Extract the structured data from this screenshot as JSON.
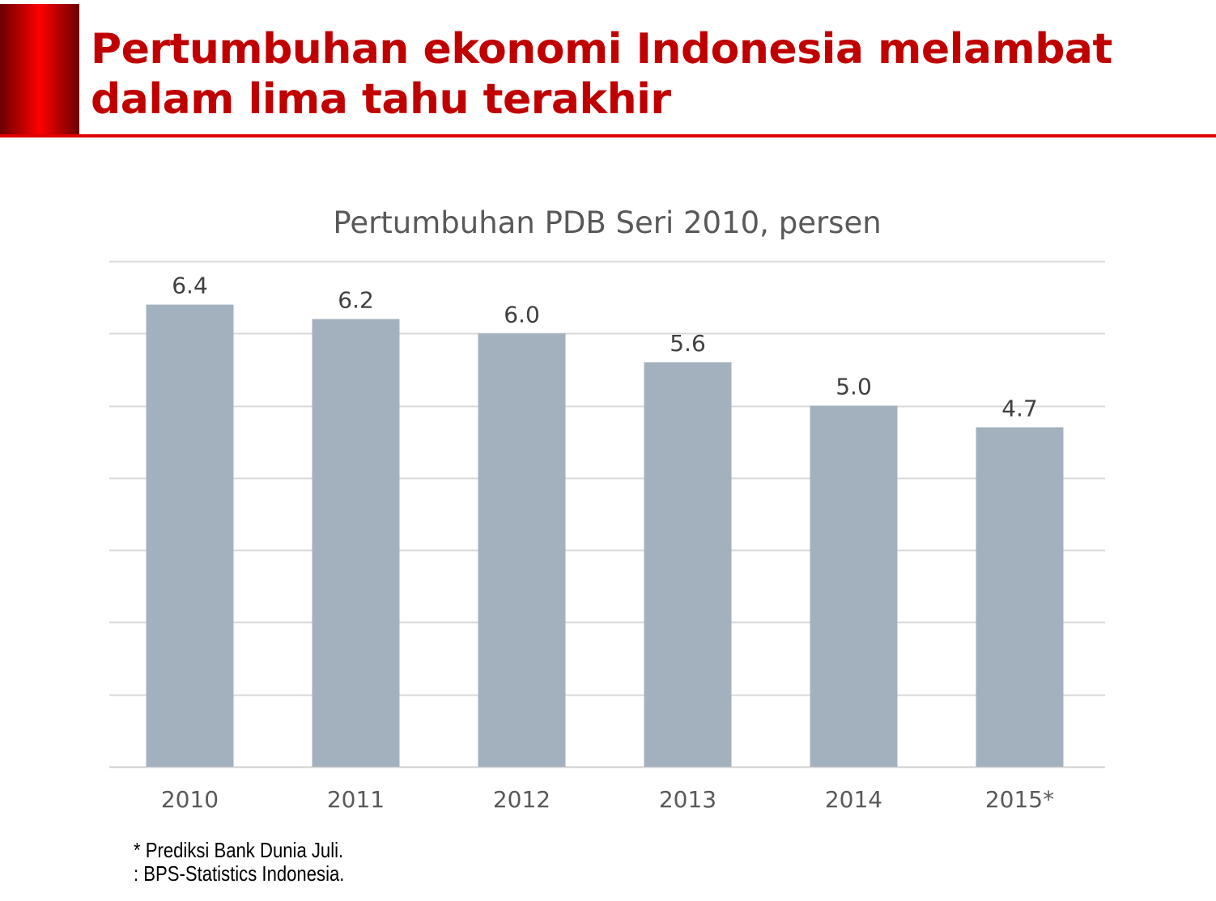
{
  "slide": {
    "title_lines": [
      "Pertumbuhan ekonomi Indonesia melambat",
      "dalam lima tahu terakhir"
    ],
    "accent_color": "#c00000",
    "footnotes": [
      "* Prediksi Bank Dunia Juli.",
      ": BPS-Statistics Indonesia."
    ]
  },
  "chart_data": {
    "type": "bar",
    "title": "Pertumbuhan PDB Seri 2010, persen",
    "categories": [
      "2010",
      "2011",
      "2012",
      "2013",
      "2014",
      "2015*"
    ],
    "values": [
      6.4,
      6.2,
      6.0,
      5.6,
      5.0,
      4.7
    ],
    "data_labels": [
      "6.4",
      "6.2",
      "6.0",
      "5.6",
      "5.0",
      "4.7"
    ],
    "xlabel": "",
    "ylabel": "",
    "ylim": [
      0,
      7
    ],
    "grid_step": 1,
    "grid": true,
    "y_tick_labels_shown": false,
    "bar_color": "#a3b1bf"
  }
}
